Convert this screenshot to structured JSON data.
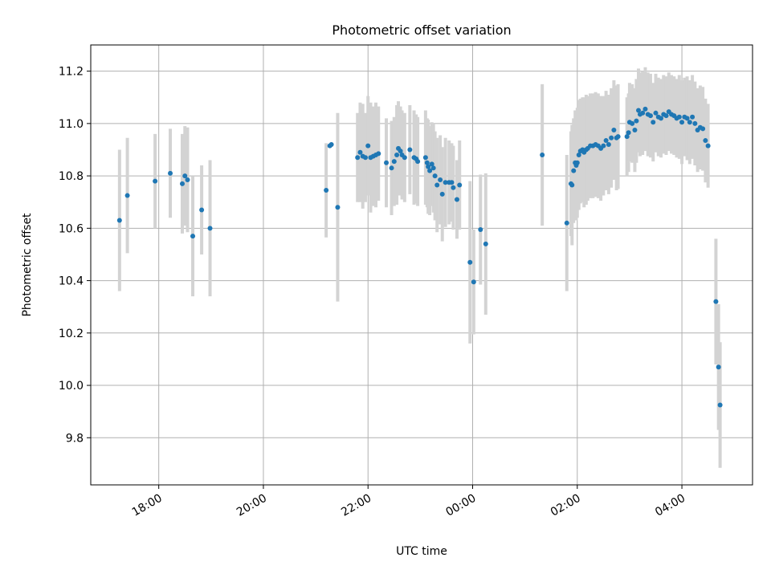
{
  "chart_data": {
    "type": "scatter",
    "title": "Photometric offset variation",
    "xlabel": "UTC time",
    "ylabel": "Photometric offset",
    "x_unit": "hours since 00:00 UTC (negative = previous day)",
    "xlim": [
      -7.3,
      5.35
    ],
    "ylim": [
      9.62,
      11.3
    ],
    "xticks": [
      {
        "value": -6,
        "label": "18:00"
      },
      {
        "value": -4,
        "label": "20:00"
      },
      {
        "value": -2,
        "label": "22:00"
      },
      {
        "value": 0,
        "label": "00:00"
      },
      {
        "value": 2,
        "label": "02:00"
      },
      {
        "value": 4,
        "label": "04:00"
      }
    ],
    "yticks": [
      {
        "value": 9.8,
        "label": "9.8"
      },
      {
        "value": 10.0,
        "label": "10.0"
      },
      {
        "value": 10.2,
        "label": "10.2"
      },
      {
        "value": 10.4,
        "label": "10.4"
      },
      {
        "value": 10.6,
        "label": "10.6"
      },
      {
        "value": 10.8,
        "label": "10.8"
      },
      {
        "value": 11.0,
        "label": "11.0"
      },
      {
        "value": 11.2,
        "label": "11.2"
      }
    ],
    "grid": true,
    "colors": {
      "point": "#1f77b4",
      "errorbar": "#d3d3d3",
      "grid": "#b0b0b0"
    },
    "points": [
      [
        -6.75,
        10.63,
        0.27
      ],
      [
        -6.6,
        10.725,
        0.22
      ],
      [
        -6.07,
        10.78,
        0.18
      ],
      [
        -5.78,
        10.81,
        0.17
      ],
      [
        -5.55,
        10.77,
        0.19
      ],
      [
        -5.5,
        10.8,
        0.19
      ],
      [
        -5.45,
        10.785,
        0.2
      ],
      [
        -5.35,
        10.57,
        0.23
      ],
      [
        -5.18,
        10.67,
        0.17
      ],
      [
        -5.02,
        10.6,
        0.26
      ],
      [
        -2.8,
        10.745,
        0.18
      ],
      [
        -2.73,
        10.915,
        0.0
      ],
      [
        -2.7,
        10.92,
        0.0
      ],
      [
        -2.58,
        10.68,
        0.36
      ],
      [
        -2.2,
        10.87,
        0.17
      ],
      [
        -2.15,
        10.89,
        0.19
      ],
      [
        -2.1,
        10.875,
        0.2
      ],
      [
        -2.05,
        10.87,
        0.17
      ],
      [
        -2.0,
        10.915,
        0.19
      ],
      [
        -1.95,
        10.87,
        0.21
      ],
      [
        -1.9,
        10.875,
        0.19
      ],
      [
        -1.85,
        10.88,
        0.2
      ],
      [
        -1.8,
        10.885,
        0.18
      ],
      [
        -1.65,
        10.85,
        0.17
      ],
      [
        -1.55,
        10.83,
        0.18
      ],
      [
        -1.5,
        10.855,
        0.17
      ],
      [
        -1.45,
        10.88,
        0.19
      ],
      [
        -1.42,
        10.905,
        0.18
      ],
      [
        -1.38,
        10.895,
        0.17
      ],
      [
        -1.35,
        10.88,
        0.17
      ],
      [
        -1.3,
        10.87,
        0.17
      ],
      [
        -1.2,
        10.9,
        0.17
      ],
      [
        -1.12,
        10.87,
        0.18
      ],
      [
        -1.08,
        10.865,
        0.17
      ],
      [
        -1.05,
        10.855,
        0.17
      ],
      [
        -0.9,
        10.87,
        0.18
      ],
      [
        -0.87,
        10.85,
        0.17
      ],
      [
        -0.85,
        10.835,
        0.18
      ],
      [
        -0.82,
        10.82,
        0.17
      ],
      [
        -0.78,
        10.845,
        0.16
      ],
      [
        -0.75,
        10.83,
        0.17
      ],
      [
        -0.72,
        10.8,
        0.17
      ],
      [
        -0.68,
        10.765,
        0.18
      ],
      [
        -0.62,
        10.785,
        0.17
      ],
      [
        -0.58,
        10.73,
        0.18
      ],
      [
        -0.52,
        10.775,
        0.17
      ],
      [
        -0.45,
        10.775,
        0.16
      ],
      [
        -0.4,
        10.775,
        0.15
      ],
      [
        -0.37,
        10.755,
        0.16
      ],
      [
        -0.3,
        10.71,
        0.15
      ],
      [
        -0.25,
        10.765,
        0.17
      ],
      [
        -0.05,
        10.47,
        0.31
      ],
      [
        0.02,
        10.395,
        0.2
      ],
      [
        0.15,
        10.595,
        0.21
      ],
      [
        0.25,
        10.54,
        0.27
      ],
      [
        1.33,
        10.88,
        0.27
      ],
      [
        1.8,
        10.62,
        0.26
      ],
      [
        1.88,
        10.77,
        0.2
      ],
      [
        1.9,
        10.765,
        0.23
      ],
      [
        1.93,
        10.82,
        0.2
      ],
      [
        1.96,
        10.85,
        0.2
      ],
      [
        1.98,
        10.84,
        0.21
      ],
      [
        2.0,
        10.85,
        0.21
      ],
      [
        2.03,
        10.88,
        0.21
      ],
      [
        2.06,
        10.895,
        0.2
      ],
      [
        2.1,
        10.9,
        0.2
      ],
      [
        2.13,
        10.89,
        0.21
      ],
      [
        2.17,
        10.9,
        0.21
      ],
      [
        2.2,
        10.905,
        0.2
      ],
      [
        2.25,
        10.915,
        0.2
      ],
      [
        2.3,
        10.915,
        0.2
      ],
      [
        2.35,
        10.92,
        0.2
      ],
      [
        2.4,
        10.915,
        0.2
      ],
      [
        2.45,
        10.905,
        0.2
      ],
      [
        2.5,
        10.915,
        0.19
      ],
      [
        2.55,
        10.935,
        0.19
      ],
      [
        2.6,
        10.92,
        0.19
      ],
      [
        2.65,
        10.945,
        0.19
      ],
      [
        2.7,
        10.975,
        0.19
      ],
      [
        2.75,
        10.945,
        0.2
      ],
      [
        2.78,
        10.95,
        0.2
      ],
      [
        2.95,
        10.95,
        0.15
      ],
      [
        2.98,
        10.965,
        0.15
      ],
      [
        3.0,
        11.005,
        0.15
      ],
      [
        3.05,
        11.0,
        0.15
      ],
      [
        3.1,
        10.975,
        0.16
      ],
      [
        3.13,
        11.01,
        0.16
      ],
      [
        3.17,
        11.05,
        0.16
      ],
      [
        3.2,
        11.035,
        0.16
      ],
      [
        3.25,
        11.04,
        0.16
      ],
      [
        3.3,
        11.055,
        0.16
      ],
      [
        3.35,
        11.035,
        0.16
      ],
      [
        3.4,
        11.03,
        0.16
      ],
      [
        3.45,
        11.005,
        0.15
      ],
      [
        3.5,
        11.04,
        0.15
      ],
      [
        3.55,
        11.025,
        0.15
      ],
      [
        3.6,
        11.02,
        0.15
      ],
      [
        3.65,
        11.035,
        0.15
      ],
      [
        3.7,
        11.03,
        0.15
      ],
      [
        3.75,
        11.045,
        0.15
      ],
      [
        3.8,
        11.035,
        0.15
      ],
      [
        3.85,
        11.03,
        0.15
      ],
      [
        3.9,
        11.02,
        0.15
      ],
      [
        3.95,
        11.025,
        0.16
      ],
      [
        4.0,
        11.005,
        0.16
      ],
      [
        4.05,
        11.025,
        0.15
      ],
      [
        4.1,
        11.02,
        0.16
      ],
      [
        4.15,
        11.005,
        0.16
      ],
      [
        4.2,
        11.025,
        0.16
      ],
      [
        4.25,
        11.0,
        0.16
      ],
      [
        4.3,
        10.975,
        0.16
      ],
      [
        4.35,
        10.985,
        0.16
      ],
      [
        4.4,
        10.98,
        0.16
      ],
      [
        4.45,
        10.935,
        0.16
      ],
      [
        4.5,
        10.915,
        0.16
      ],
      [
        4.65,
        10.32,
        0.24
      ],
      [
        4.7,
        10.07,
        0.24
      ],
      [
        4.73,
        9.925,
        0.24
      ]
    ]
  }
}
